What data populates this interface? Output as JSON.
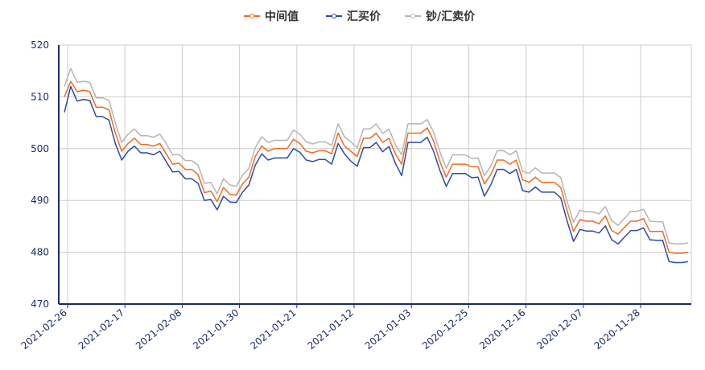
{
  "colors": {
    "mid": "#f26a21",
    "buy": "#2c4da0",
    "sell": "#b5b5b5",
    "axis": "#1a2a6c",
    "grid": "#cccccc"
  },
  "legend": {
    "mid": "中间值",
    "buy": "汇买价",
    "sell": "钞/汇卖价"
  },
  "chart_data": {
    "type": "line",
    "title": "",
    "xlabel": "",
    "ylabel": "",
    "ylim": [
      470,
      520
    ],
    "yticks": [
      "470",
      "480",
      "490",
      "500",
      "510",
      "520"
    ],
    "grid": "on",
    "legend_position": "top-center",
    "xtick_labels": [
      "2021-02-26",
      "2021-02-17",
      "2021-02-08",
      "2021-01-30",
      "2021-01-21",
      "2021-01-12",
      "2021-01-03",
      "2020-12-25",
      "2020-12-16",
      "2020-12-07",
      "2020-11-28"
    ],
    "series": [
      {
        "name": "中间值",
        "color_key": "mid",
        "values": [
          510.0,
          513.0,
          511.0,
          511.3,
          511.0,
          508.0,
          508.0,
          507.5,
          503.0,
          499.5,
          501.0,
          502.0,
          500.8,
          500.8,
          500.5,
          501.0,
          499.0,
          497.0,
          497.2,
          496.0,
          496.0,
          495.0,
          491.5,
          491.8,
          489.8,
          492.5,
          491.2,
          491.0,
          493.2,
          494.5,
          498.5,
          500.5,
          499.5,
          500.0,
          500.0,
          500.0,
          501.8,
          501.0,
          499.5,
          499.2,
          499.6,
          499.6,
          499.0,
          503.0,
          500.5,
          499.5,
          498.5,
          502.0,
          502.0,
          503.0,
          501.2,
          502.0,
          499.0,
          497.0,
          503.0,
          503.0,
          503.0,
          504.0,
          501.5,
          497.5,
          494.5,
          497.0,
          497.0,
          497.0,
          496.5,
          496.5,
          493.2,
          495.0,
          497.8,
          497.8,
          497.0,
          497.8,
          494.0,
          493.5,
          494.5,
          493.5,
          493.5,
          493.5,
          492.5,
          488.0,
          484.0,
          486.3,
          486.0,
          486.0,
          485.5,
          487.0,
          484.2,
          483.5,
          484.8,
          486.0,
          486.0,
          486.5,
          484.0,
          484.0,
          484.0,
          480.0,
          479.8,
          479.8,
          480.0
        ]
      },
      {
        "name": "汇买价",
        "color_key": "buy",
        "values": [
          507.0,
          512.0,
          509.2,
          509.5,
          509.3,
          506.2,
          506.2,
          505.5,
          501.0,
          497.8,
          499.5,
          500.5,
          499.2,
          499.2,
          498.8,
          499.5,
          497.5,
          495.5,
          495.6,
          494.2,
          494.2,
          493.3,
          490.0,
          490.2,
          488.2,
          490.8,
          489.7,
          489.6,
          491.6,
          493.0,
          496.8,
          499.0,
          497.8,
          498.2,
          498.2,
          498.2,
          500.0,
          499.3,
          497.8,
          497.5,
          497.9,
          497.9,
          497.0,
          501.0,
          499.0,
          497.6,
          496.6,
          500.2,
          500.2,
          501.2,
          499.4,
          500.4,
          497.2,
          494.8,
          501.2,
          501.2,
          501.2,
          502.2,
          499.5,
          495.8,
          492.7,
          495.2,
          495.2,
          495.2,
          494.4,
          494.5,
          490.8,
          493.0,
          496.0,
          496.0,
          495.2,
          496.0,
          491.9,
          491.6,
          492.6,
          491.6,
          491.6,
          491.6,
          490.5,
          486.0,
          482.1,
          484.4,
          484.1,
          484.1,
          483.7,
          485.1,
          482.4,
          481.6,
          482.9,
          484.2,
          484.2,
          484.7,
          482.4,
          482.3,
          482.3,
          478.2,
          478.0,
          478.0,
          478.2
        ]
      },
      {
        "name": "钞/汇卖价",
        "color_key": "sell",
        "values": [
          512.0,
          515.5,
          512.8,
          513.0,
          512.8,
          509.8,
          509.8,
          509.3,
          505.0,
          501.2,
          502.8,
          503.8,
          502.5,
          502.5,
          502.2,
          502.8,
          501.0,
          498.8,
          498.9,
          497.7,
          497.7,
          496.8,
          493.3,
          493.5,
          491.3,
          494.2,
          493.0,
          492.7,
          494.9,
          496.2,
          500.2,
          502.3,
          501.2,
          501.6,
          501.6,
          501.6,
          503.6,
          502.8,
          501.3,
          500.9,
          501.3,
          501.3,
          500.6,
          504.8,
          502.3,
          501.3,
          500.2,
          503.8,
          503.8,
          504.8,
          502.9,
          503.8,
          500.8,
          498.8,
          504.8,
          504.8,
          504.8,
          505.6,
          503.2,
          499.4,
          496.2,
          498.8,
          498.8,
          498.8,
          498.1,
          498.2,
          494.8,
          496.6,
          499.6,
          499.6,
          498.8,
          499.6,
          495.6,
          495.2,
          496.3,
          495.3,
          495.3,
          495.3,
          494.4,
          489.8,
          485.8,
          488.1,
          487.8,
          487.8,
          487.4,
          488.8,
          486.1,
          485.2,
          486.5,
          487.9,
          487.9,
          488.3,
          486.0,
          485.9,
          485.9,
          481.8,
          481.6,
          481.6,
          481.8
        ]
      }
    ]
  }
}
